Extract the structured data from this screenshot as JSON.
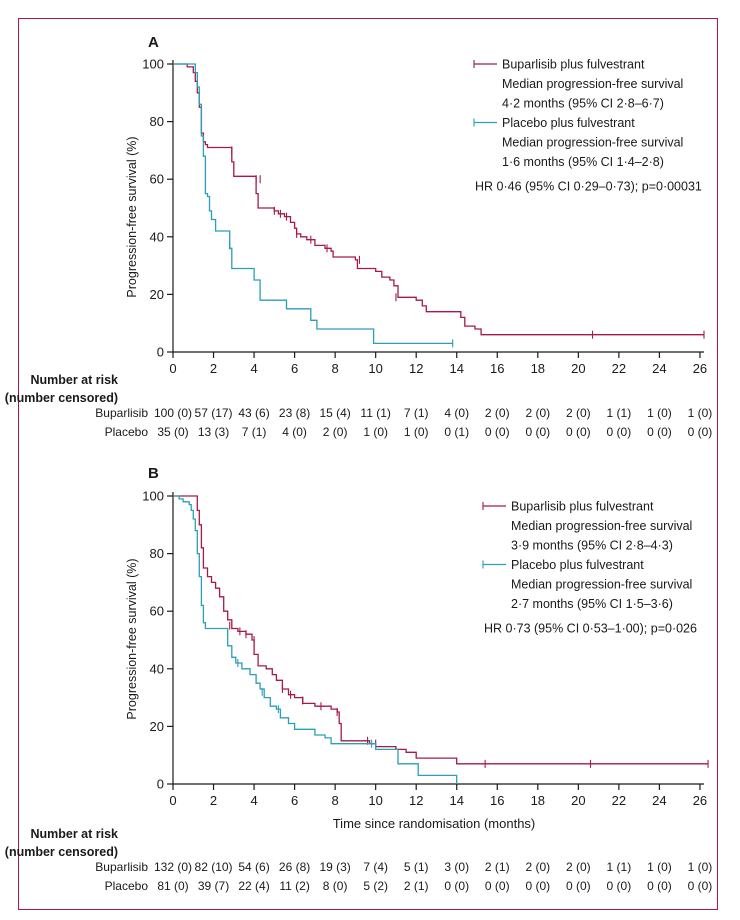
{
  "colors": {
    "frame": "#a6194a",
    "bupa": "#a6194a",
    "placebo": "#2a9fb8"
  },
  "chart_data": [
    {
      "type": "line",
      "panel": "A",
      "ylabel": "Progression-free survival (%)",
      "xlabel": "",
      "xlim": [
        0,
        26.2
      ],
      "ylim": [
        0,
        100
      ],
      "xticks": [
        0,
        2,
        4,
        6,
        8,
        10,
        12,
        14,
        16,
        18,
        20,
        22,
        24,
        26
      ],
      "yticks": [
        0,
        20,
        40,
        60,
        80,
        100
      ],
      "legend": [
        {
          "series": "bupa",
          "lines": [
            "Buparlisib plus fulvestrant",
            "Median progression-free survival",
            "4·2 months (95% CI 2·8–6·7)"
          ]
        },
        {
          "series": "placebo",
          "lines": [
            "Placebo plus fulvestrant",
            "Median progression-free survival",
            "1·6 months (95% CI 1·4–2·8)"
          ]
        }
      ],
      "hr_text": "HR 0·46 (95% CI 0·29–0·73); p=0·00031",
      "series": [
        {
          "key": "bupa",
          "name": "Buparlisib plus fulvestrant",
          "points": [
            [
              0,
              100
            ],
            [
              0.7,
              99
            ],
            [
              1,
              97
            ],
            [
              1.1,
              94
            ],
            [
              1.2,
              90
            ],
            [
              1.3,
              85
            ],
            [
              1.4,
              76
            ],
            [
              1.5,
              73
            ],
            [
              1.6,
              72
            ],
            [
              1.7,
              71
            ],
            [
              2.8,
              71
            ],
            [
              2.9,
              66
            ],
            [
              3,
              61
            ],
            [
              4,
              61
            ],
            [
              4.1,
              55
            ],
            [
              4.2,
              50
            ],
            [
              5,
              49
            ],
            [
              5.2,
              48
            ],
            [
              5.5,
              47
            ],
            [
              5.8,
              45
            ],
            [
              6,
              43
            ],
            [
              6.1,
              41
            ],
            [
              6.3,
              40
            ],
            [
              6.6,
              39
            ],
            [
              7,
              37
            ],
            [
              7.5,
              36
            ],
            [
              7.8,
              35
            ],
            [
              7.9,
              33
            ],
            [
              9,
              32
            ],
            [
              9.1,
              29
            ],
            [
              10,
              28
            ],
            [
              10.3,
              26
            ],
            [
              10.7,
              25
            ],
            [
              10.9,
              23
            ],
            [
              11.1,
              19
            ],
            [
              12,
              18
            ],
            [
              12.3,
              16
            ],
            [
              12.5,
              14
            ],
            [
              14.2,
              12
            ],
            [
              14.4,
              9
            ],
            [
              14.9,
              8
            ],
            [
              15.2,
              6
            ],
            [
              26.2,
              6
            ]
          ],
          "censors": [
            [
              2.9,
              70
            ],
            [
              4.1,
              60
            ],
            [
              4.3,
              60
            ],
            [
              5.0,
              49
            ],
            [
              5.3,
              48
            ],
            [
              5.6,
              47
            ],
            [
              6.1,
              41
            ],
            [
              6.8,
              39
            ],
            [
              7.6,
              36
            ],
            [
              9.2,
              32
            ],
            [
              11.0,
              19
            ],
            [
              20.7,
              6
            ],
            [
              26.2,
              6
            ]
          ]
        },
        {
          "key": "placebo",
          "name": "Placebo plus fulvestrant",
          "points": [
            [
              0,
              100
            ],
            [
              1,
              100
            ],
            [
              1.1,
              97
            ],
            [
              1.2,
              92
            ],
            [
              1.3,
              86
            ],
            [
              1.4,
              75
            ],
            [
              1.5,
              68
            ],
            [
              1.6,
              55
            ],
            [
              1.7,
              54
            ],
            [
              1.8,
              49
            ],
            [
              1.9,
              46
            ],
            [
              2.1,
              42
            ],
            [
              2.7,
              42
            ],
            [
              2.8,
              36
            ],
            [
              2.9,
              29
            ],
            [
              3.9,
              29
            ],
            [
              4,
              25
            ],
            [
              4.3,
              18
            ],
            [
              5.5,
              18
            ],
            [
              5.6,
              15
            ],
            [
              6.6,
              15
            ],
            [
              6.8,
              11
            ],
            [
              7.1,
              8
            ],
            [
              9.8,
              8
            ],
            [
              9.9,
              3
            ],
            [
              13.8,
              3
            ]
          ],
          "censors": [
            [
              2.8,
              37
            ],
            [
              13.8,
              3
            ]
          ]
        }
      ],
      "risk_table": {
        "header": [
          "Number at risk",
          "(number censored)"
        ],
        "rows": [
          {
            "label": "Buparlisib",
            "values": [
              "100 (0)",
              "57 (17)",
              "43 (6)",
              "23 (8)",
              "15 (4)",
              "11 (1)",
              "7 (1)",
              "4 (0)",
              "2 (0)",
              "2 (0)",
              "2 (0)",
              "1 (1)",
              "1 (0)",
              "1 (0)"
            ]
          },
          {
            "label": "Placebo",
            "values": [
              "35 (0)",
              "13 (3)",
              "7 (1)",
              "4 (0)",
              "2 (0)",
              "1 (0)",
              "1 (0)",
              "0 (1)",
              "0 (0)",
              "0 (0)",
              "0 (0)",
              "0 (0)",
              "0 (0)",
              "0 (0)"
            ]
          }
        ]
      }
    },
    {
      "type": "line",
      "panel": "B",
      "ylabel": "Progression-free survival (%)",
      "xlabel": "Time since randomisation (months)",
      "xlim": [
        0,
        26.2
      ],
      "ylim": [
        0,
        100
      ],
      "xticks": [
        0,
        2,
        4,
        6,
        8,
        10,
        12,
        14,
        16,
        18,
        20,
        22,
        24,
        26
      ],
      "yticks": [
        0,
        20,
        40,
        60,
        80,
        100
      ],
      "legend": [
        {
          "series": "bupa",
          "lines": [
            "Buparlisib plus fulvestrant",
            "Median progression-free survival",
            "3·9 months (95% CI 2·8–4·3)"
          ]
        },
        {
          "series": "placebo",
          "lines": [
            "Placebo plus fulvestrant",
            "Median progression-free survival",
            "2·7 months (95% CI 1·5–3·6)"
          ]
        }
      ],
      "hr_text": "HR 0·73 (95% CI 0·53–1·00); p=0·026",
      "series": [
        {
          "key": "bupa",
          "name": "Buparlisib plus fulvestrant",
          "points": [
            [
              0,
              100
            ],
            [
              1.1,
              100
            ],
            [
              1.2,
              95
            ],
            [
              1.3,
              90
            ],
            [
              1.4,
              82
            ],
            [
              1.5,
              75
            ],
            [
              1.7,
              72
            ],
            [
              1.9,
              70
            ],
            [
              2.1,
              68
            ],
            [
              2.3,
              65
            ],
            [
              2.5,
              60
            ],
            [
              2.7,
              57
            ],
            [
              2.9,
              54
            ],
            [
              3.2,
              53
            ],
            [
              3.6,
              52
            ],
            [
              3.9,
              50
            ],
            [
              4,
              45
            ],
            [
              4.2,
              41
            ],
            [
              4.6,
              40
            ],
            [
              4.9,
              38
            ],
            [
              5.1,
              36
            ],
            [
              5.4,
              33
            ],
            [
              5.7,
              31
            ],
            [
              6,
              30
            ],
            [
              6.4,
              28
            ],
            [
              7,
              27
            ],
            [
              7.8,
              26
            ],
            [
              8.1,
              25
            ],
            [
              8.2,
              21
            ],
            [
              8.3,
              15
            ],
            [
              9.5,
              15
            ],
            [
              9.7,
              14
            ],
            [
              10,
              13
            ],
            [
              11,
              12
            ],
            [
              11.5,
              11
            ],
            [
              12,
              9
            ],
            [
              13.9,
              9
            ],
            [
              14,
              7
            ],
            [
              26.4,
              7
            ]
          ],
          "censors": [
            [
              2.8,
              55
            ],
            [
              3.3,
              53
            ],
            [
              3.6,
              52
            ],
            [
              4.0,
              50
            ],
            [
              5.4,
              33
            ],
            [
              5.8,
              31
            ],
            [
              6.4,
              29
            ],
            [
              7.3,
              27
            ],
            [
              8.1,
              25
            ],
            [
              9.6,
              15
            ],
            [
              10.0,
              14
            ],
            [
              15.4,
              7
            ],
            [
              20.6,
              7
            ],
            [
              26.4,
              7
            ]
          ]
        },
        {
          "key": "placebo",
          "name": "Placebo plus fulvestrant",
          "points": [
            [
              0,
              100
            ],
            [
              0.3,
              99
            ],
            [
              0.5,
              98
            ],
            [
              0.8,
              97
            ],
            [
              0.9,
              95
            ],
            [
              1,
              92
            ],
            [
              1.1,
              88
            ],
            [
              1.2,
              80
            ],
            [
              1.3,
              72
            ],
            [
              1.4,
              62
            ],
            [
              1.5,
              56
            ],
            [
              1.6,
              54
            ],
            [
              2.6,
              54
            ],
            [
              2.7,
              48
            ],
            [
              2.9,
              44
            ],
            [
              3.1,
              42
            ],
            [
              3.4,
              40
            ],
            [
              3.8,
              38
            ],
            [
              4.1,
              35
            ],
            [
              4.3,
              33
            ],
            [
              4.5,
              30
            ],
            [
              4.8,
              27
            ],
            [
              5.1,
              26
            ],
            [
              5.3,
              23
            ],
            [
              5.7,
              21
            ],
            [
              6,
              19
            ],
            [
              6.9,
              19
            ],
            [
              7,
              17
            ],
            [
              7.5,
              16
            ],
            [
              7.8,
              14
            ],
            [
              9.9,
              14
            ],
            [
              10,
              12
            ],
            [
              11,
              12
            ],
            [
              11.1,
              7
            ],
            [
              12,
              7
            ],
            [
              12.1,
              3
            ],
            [
              13.9,
              3
            ],
            [
              14,
              0
            ]
          ],
          "censors": [
            [
              3.2,
              42
            ],
            [
              4.4,
              32
            ],
            [
              5.2,
              26
            ],
            [
              9.8,
              14
            ]
          ]
        }
      ],
      "risk_table": {
        "header": [
          "Number at risk",
          "(number censored)"
        ],
        "rows": [
          {
            "label": "Buparlisib",
            "values": [
              "132 (0)",
              "82 (10)",
              "54 (6)",
              "26 (8)",
              "19 (3)",
              "7 (4)",
              "5 (1)",
              "3 (0)",
              "2 (1)",
              "2 (0)",
              "2 (0)",
              "1 (1)",
              "1 (0)",
              "1 (0)"
            ]
          },
          {
            "label": "Placebo",
            "values": [
              "81 (0)",
              "39 (7)",
              "22 (4)",
              "11 (2)",
              "8 (0)",
              "5 (2)",
              "2 (1)",
              "0 (0)",
              "0 (0)",
              "0 (0)",
              "0 (0)",
              "0 (0)",
              "0 (0)",
              "0 (0)"
            ]
          }
        ]
      }
    }
  ]
}
